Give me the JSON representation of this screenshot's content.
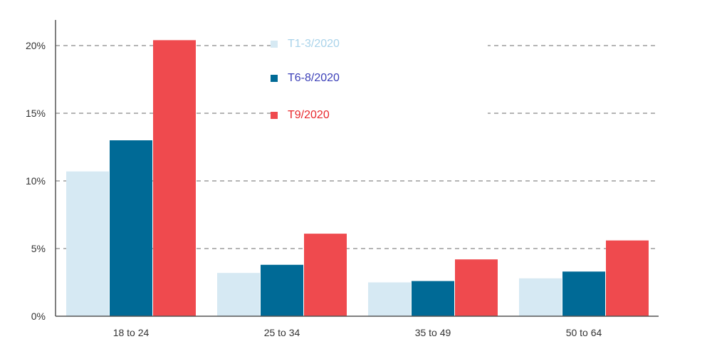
{
  "chart_data": {
    "type": "bar",
    "categories": [
      "18 to 24",
      "25 to 34",
      "35 to 49",
      "50 to 64"
    ],
    "series": [
      {
        "name": "T1-3/2020",
        "color": "#d6e9f3",
        "values": [
          10.7,
          3.2,
          2.5,
          2.8
        ]
      },
      {
        "name": "T6-8/2020",
        "color": "#006a96",
        "values": [
          13.0,
          3.8,
          2.6,
          3.3
        ]
      },
      {
        "name": "T9/2020",
        "color": "#ef4a4e",
        "values": [
          20.4,
          6.1,
          4.2,
          5.6
        ]
      }
    ],
    "yticks": [
      {
        "value": 0,
        "label": "0%"
      },
      {
        "value": 5,
        "label": "5%"
      },
      {
        "value": 10,
        "label": "10%"
      },
      {
        "value": 15,
        "label": "15%"
      },
      {
        "value": 20,
        "label": "20%"
      }
    ],
    "ylim": [
      0,
      22
    ],
    "grid": true,
    "legend_colors": {
      "T1-3/2020": "#a9d3ea",
      "T6-8/2020": "#3b3fb8",
      "T9/2020": "#e8282c"
    }
  }
}
